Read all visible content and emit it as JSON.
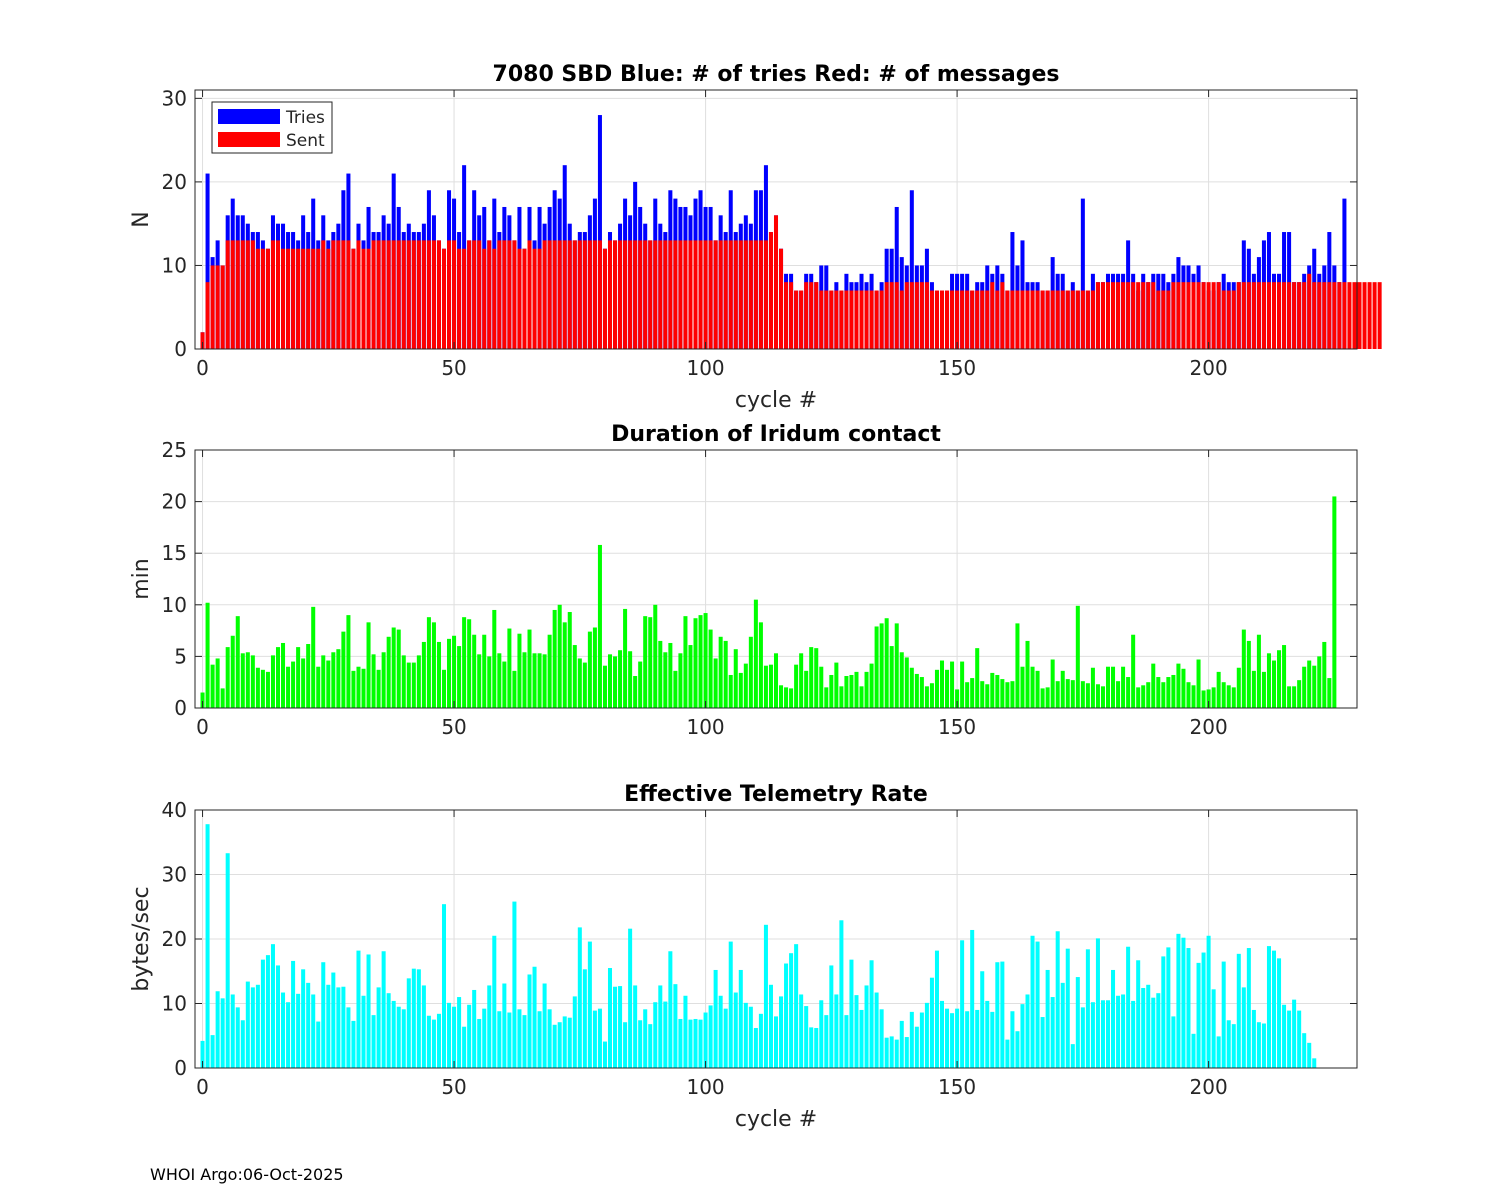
{
  "footer": "WHOI Argo:06-Oct-2025",
  "colors": {
    "tries": "#0000ff",
    "sent": "#ff0000",
    "duration": "#00ff00",
    "rate": "#00ffff"
  },
  "chart_data": [
    {
      "type": "bar",
      "title": "7080 SBD  Blue: # of tries   Red: # of messages",
      "xlabel": "cycle #",
      "ylabel": "N",
      "xlim": [
        -1.5,
        229.5
      ],
      "ylim": [
        0,
        31
      ],
      "xticks": [
        0,
        50,
        100,
        150,
        200
      ],
      "yticks": [
        0,
        10,
        20,
        30
      ],
      "grid": true,
      "legend": {
        "position": "top-left",
        "entries": [
          "Tries",
          "Sent"
        ]
      },
      "series": [
        {
          "name": "Tries",
          "x_start": 0,
          "values": [
            2,
            21,
            11,
            13,
            10,
            16,
            18,
            16,
            16,
            15,
            14,
            14,
            13,
            12,
            16,
            15,
            15,
            14,
            14,
            13,
            16,
            14,
            18,
            13,
            16,
            13,
            14,
            15,
            19,
            21,
            12,
            15,
            13,
            17,
            14,
            14,
            16,
            15,
            21,
            17,
            14,
            15,
            14,
            14,
            15,
            19,
            16,
            13,
            12,
            19,
            18,
            14,
            22,
            13,
            19,
            16,
            17,
            13,
            18,
            14,
            17,
            16,
            13,
            17,
            12,
            17,
            13,
            17,
            15,
            17,
            19,
            18,
            22,
            15,
            13,
            14,
            14,
            16,
            18,
            28,
            12,
            14,
            13,
            15,
            18,
            16,
            20,
            17,
            15,
            13,
            18,
            15,
            14,
            19,
            18,
            17,
            17,
            16,
            18,
            19,
            17,
            17,
            13,
            16,
            14,
            19,
            14,
            15,
            16,
            15,
            19,
            19,
            22,
            14,
            16,
            12,
            9,
            9,
            7,
            7,
            9,
            9,
            8,
            10,
            10,
            7,
            8,
            7,
            9,
            8,
            8,
            9,
            8,
            9,
            7,
            8,
            12,
            12,
            17,
            11,
            10,
            19,
            10,
            10,
            12,
            8,
            7,
            7,
            7,
            9,
            9,
            9,
            9,
            7,
            8,
            8,
            10,
            9,
            10,
            9,
            7,
            14,
            10,
            13,
            8,
            8,
            8,
            7,
            7,
            11,
            9,
            9,
            7,
            8,
            7,
            18,
            7,
            9,
            8,
            8,
            9,
            9,
            9,
            9,
            13,
            9,
            7,
            9,
            8,
            9,
            9,
            9,
            8,
            9,
            11,
            10,
            10,
            9,
            10,
            8,
            7,
            7,
            8,
            9,
            8,
            8,
            8,
            13,
            12,
            9,
            11,
            13,
            14,
            9,
            9,
            14,
            14,
            8,
            8,
            9,
            10,
            12,
            9,
            10,
            14,
            10,
            8,
            18
          ]
        },
        {
          "name": "Sent",
          "x_start": 0,
          "values": [
            2,
            8,
            10,
            10,
            10,
            13,
            13,
            13,
            13,
            13,
            13,
            12,
            12,
            12,
            13,
            13,
            12,
            12,
            12,
            12,
            12,
            12,
            12,
            12,
            13,
            12,
            13,
            13,
            13,
            13,
            12,
            13,
            12,
            12,
            13,
            13,
            13,
            13,
            13,
            13,
            13,
            13,
            13,
            13,
            13,
            13,
            13,
            13,
            12,
            13,
            13,
            12,
            12,
            13,
            13,
            13,
            12,
            13,
            12,
            13,
            13,
            13,
            13,
            12,
            12,
            13,
            12,
            12,
            13,
            13,
            13,
            13,
            13,
            13,
            13,
            13,
            13,
            13,
            13,
            13,
            12,
            13,
            13,
            13,
            13,
            13,
            13,
            13,
            13,
            13,
            13,
            13,
            13,
            13,
            13,
            13,
            13,
            13,
            13,
            13,
            13,
            13,
            13,
            13,
            13,
            13,
            13,
            13,
            13,
            13,
            13,
            13,
            13,
            14,
            16,
            12,
            8,
            8,
            7,
            7,
            8,
            8,
            8,
            7,
            7,
            7,
            7,
            7,
            7,
            7,
            7,
            7,
            7,
            7,
            7,
            7,
            8,
            8,
            8,
            7,
            8,
            8,
            8,
            8,
            8,
            7,
            7,
            7,
            7,
            7,
            7,
            7,
            7,
            7,
            7,
            7,
            7,
            8,
            7,
            8,
            7,
            7,
            7,
            7,
            7,
            7,
            7,
            7,
            7,
            7,
            7,
            7,
            7,
            7,
            7,
            7,
            7,
            7,
            8,
            8,
            8,
            8,
            8,
            8,
            8,
            8,
            8,
            8,
            8,
            8,
            7,
            7,
            7,
            8,
            8,
            8,
            8,
            8,
            8,
            8,
            8,
            8,
            8,
            7,
            7,
            7,
            8,
            8,
            8,
            8,
            8,
            8,
            8,
            8,
            8,
            8,
            8,
            8,
            8,
            8,
            9,
            8,
            8,
            8,
            8,
            8,
            8,
            8,
            8,
            8,
            8,
            8,
            8,
            8,
            8,
            0
          ]
        }
      ]
    },
    {
      "type": "bar",
      "title": "Duration of Iridum contact",
      "xlabel": "",
      "ylabel": "min",
      "xlim": [
        -1.5,
        229.5
      ],
      "ylim": [
        0,
        25
      ],
      "xticks": [
        0,
        50,
        100,
        150,
        200
      ],
      "yticks": [
        0,
        5,
        10,
        15,
        20,
        25
      ],
      "grid": true,
      "series": [
        {
          "name": "Duration",
          "x_start": 0,
          "values": [
            1.5,
            10.2,
            4.2,
            4.8,
            1.9,
            5.9,
            7.0,
            8.9,
            5.3,
            5.4,
            5.1,
            3.9,
            3.7,
            3.5,
            5.1,
            5.9,
            6.3,
            4.0,
            4.5,
            5.9,
            4.8,
            6.2,
            9.8,
            4.0,
            5.1,
            4.6,
            5.4,
            5.7,
            7.4,
            9.0,
            3.6,
            4.0,
            3.8,
            8.3,
            5.2,
            3.7,
            5.4,
            6.9,
            7.8,
            7.6,
            5.1,
            4.4,
            4.4,
            5.1,
            6.4,
            8.8,
            8.3,
            6.4,
            3.7,
            6.7,
            7.0,
            6.0,
            8.8,
            8.6,
            7.1,
            5.2,
            7.1,
            5.0,
            9.5,
            5.3,
            4.5,
            7.7,
            3.6,
            7.2,
            5.4,
            7.6,
            5.3,
            5.3,
            5.2,
            7.1,
            9.5,
            10.0,
            8.3,
            9.3,
            6.1,
            4.8,
            4.4,
            7.4,
            7.8,
            15.8,
            4.1,
            5.2,
            5.0,
            5.6,
            9.6,
            5.5,
            3.1,
            4.5,
            8.9,
            8.8,
            10.0,
            6.5,
            5.4,
            6.3,
            3.6,
            5.3,
            8.9,
            6.1,
            8.7,
            9.0,
            9.2,
            7.6,
            4.8,
            6.9,
            6.5,
            3.2,
            5.7,
            3.4,
            4.3,
            6.9,
            10.5,
            8.3,
            4.1,
            4.2,
            5.3,
            2.2,
            2.0,
            1.9,
            4.2,
            5.3,
            3.6,
            5.9,
            5.8,
            4.0,
            2.0,
            3.2,
            4.4,
            2.1,
            3.1,
            3.2,
            3.5,
            2.1,
            3.5,
            4.3,
            7.9,
            8.2,
            8.7,
            6.0,
            8.2,
            5.4,
            4.9,
            3.9,
            3.3,
            3.0,
            2.1,
            2.4,
            3.7,
            4.6,
            3.7,
            4.5,
            1.8,
            4.5,
            2.5,
            2.9,
            5.8,
            2.6,
            2.3,
            3.4,
            3.2,
            2.8,
            2.5,
            2.6,
            8.2,
            4.0,
            6.5,
            4.0,
            3.6,
            1.9,
            2.0,
            4.7,
            2.6,
            3.6,
            2.8,
            2.7,
            9.9,
            2.6,
            2.4,
            3.9,
            2.3,
            2.1,
            4.0,
            4.0,
            2.6,
            4.0,
            3.0,
            7.1,
            2.0,
            2.2,
            2.5,
            4.3,
            3.0,
            2.5,
            3.0,
            3.2,
            4.3,
            3.8,
            2.5,
            2.2,
            4.7,
            1.7,
            1.8,
            2.0,
            3.5,
            2.5,
            2.2,
            2.0,
            3.9,
            7.6,
            6.5,
            3.6,
            7.1,
            3.5,
            5.3,
            4.6,
            5.6,
            6.1,
            2.1,
            2.1,
            2.7,
            4.0,
            4.6,
            4.1,
            5.0,
            6.4,
            2.9,
            20.5
          ]
        }
      ]
    },
    {
      "type": "bar",
      "title": "Effective Telemetry Rate",
      "xlabel": "cycle #",
      "ylabel": "bytes/sec",
      "xlim": [
        -1.5,
        229.5
      ],
      "ylim": [
        0,
        40
      ],
      "xticks": [
        0,
        50,
        100,
        150,
        200
      ],
      "yticks": [
        0,
        10,
        20,
        30,
        40
      ],
      "grid": true,
      "series": [
        {
          "name": "Rate",
          "x_start": 0,
          "values": [
            4.2,
            37.8,
            5.1,
            11.9,
            10.8,
            33.3,
            11.4,
            9.4,
            7.4,
            13.4,
            12.5,
            12.9,
            16.8,
            17.5,
            19.2,
            15.9,
            11.7,
            10.2,
            16.6,
            11.5,
            15.3,
            13.2,
            11.4,
            7.2,
            16.4,
            12.9,
            14.8,
            12.5,
            12.6,
            9.4,
            7.3,
            18.2,
            11.2,
            17.6,
            8.2,
            12.5,
            18.1,
            11.6,
            10.4,
            9.5,
            9.1,
            13.9,
            15.4,
            15.3,
            12.8,
            8.1,
            7.5,
            8.4,
            25.4,
            10.1,
            9.5,
            11.0,
            6.4,
            9.8,
            12.1,
            7.6,
            9.2,
            12.8,
            20.5,
            8.8,
            13.1,
            8.6,
            25.8,
            9.1,
            8.2,
            14.5,
            15.7,
            8.8,
            13.1,
            9.1,
            6.7,
            7.1,
            8.0,
            7.8,
            11.1,
            21.8,
            15.3,
            19.6,
            8.9,
            9.2,
            4.1,
            15.5,
            12.6,
            12.7,
            7.1,
            21.6,
            12.8,
            7.4,
            9.1,
            6.8,
            10.2,
            12.8,
            10.3,
            18.1,
            13.0,
            7.6,
            11.2,
            7.5,
            7.6,
            7.5,
            8.6,
            9.7,
            15.2,
            11.2,
            9.2,
            19.6,
            11.7,
            15.2,
            10.1,
            9.5,
            6.2,
            8.4,
            22.2,
            12.9,
            8.0,
            11.1,
            16.2,
            17.8,
            19.2,
            11.4,
            9.6,
            6.3,
            6.2,
            10.5,
            8.2,
            15.9,
            11.4,
            22.9,
            8.2,
            16.8,
            11.3,
            9.0,
            12.8,
            16.7,
            11.7,
            9.1,
            4.7,
            4.9,
            4.4,
            7.3,
            4.8,
            8.7,
            6.4,
            8.6,
            10.1,
            14.0,
            18.2,
            10.4,
            9.2,
            8.5,
            9.2,
            19.8,
            8.8,
            21.4,
            9.0,
            15.0,
            10.4,
            8.7,
            16.4,
            16.5,
            4.4,
            8.8,
            5.7,
            9.9,
            11.4,
            20.5,
            19.6,
            7.9,
            15.2,
            11.0,
            21.2,
            13.2,
            18.5,
            3.7,
            14.1,
            9.4,
            18.4,
            10.2,
            20.1,
            10.5,
            10.5,
            15.2,
            11.2,
            11.4,
            18.8,
            10.4,
            16.7,
            12.4,
            12.9,
            10.9,
            11.6,
            17.3,
            18.7,
            8.0,
            20.8,
            20.2,
            18.6,
            5.3,
            16.3,
            17.9,
            20.5,
            12.2,
            4.9,
            16.5,
            7.4,
            6.8,
            17.7,
            12.5,
            18.6,
            9.0,
            7.1,
            6.9,
            18.9,
            18.2,
            17.0,
            9.8,
            8.9,
            10.6,
            8.9,
            5.4,
            3.9,
            1.5
          ]
        }
      ]
    }
  ]
}
